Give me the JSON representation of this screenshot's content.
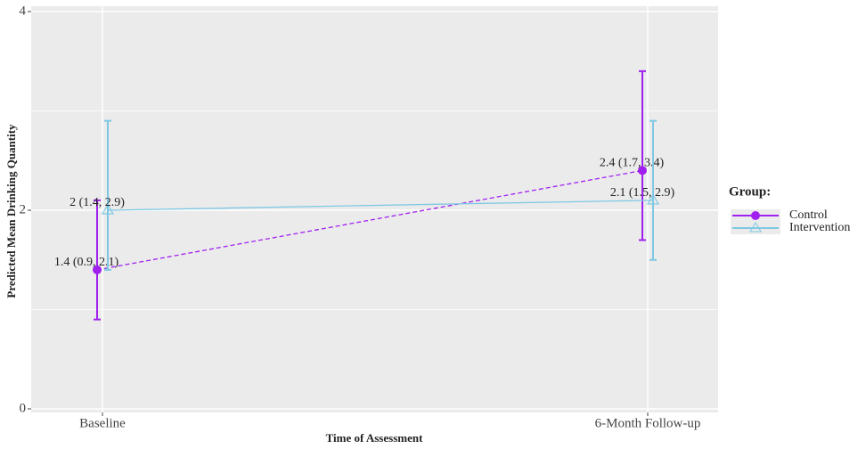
{
  "chart_data": {
    "type": "line",
    "x_label": "Time of Assessment",
    "y_label": "Predicted Mean Drinking Quantity",
    "categories": [
      "Baseline",
      "6-Month Follow-up"
    ],
    "ylim": [
      0,
      4
    ],
    "yticks": [
      0,
      2,
      4
    ],
    "minor_yticks": [
      1,
      3
    ],
    "grid": true,
    "legend_title": "Group:",
    "legend_position": "right",
    "series": [
      {
        "name": "Control",
        "color": "#a020f0",
        "dash": "dashed",
        "marker": "circle",
        "values": [
          1.4,
          2.4
        ],
        "lower": [
          0.9,
          1.7
        ],
        "upper": [
          2.1,
          3.4
        ],
        "value_labels": [
          "1.4 (0.9, 2.1)",
          "2.4 (1.7, 3.4)"
        ]
      },
      {
        "name": "Intervention",
        "color": "#7ec8e3",
        "dash": "solid",
        "marker": "triangle",
        "values": [
          2,
          2.1
        ],
        "lower": [
          1.4,
          1.5
        ],
        "upper": [
          2.9,
          2.9
        ],
        "value_labels": [
          "2 (1.4, 2.9)",
          "2.1 (1.5, 2.9)"
        ]
      }
    ]
  }
}
